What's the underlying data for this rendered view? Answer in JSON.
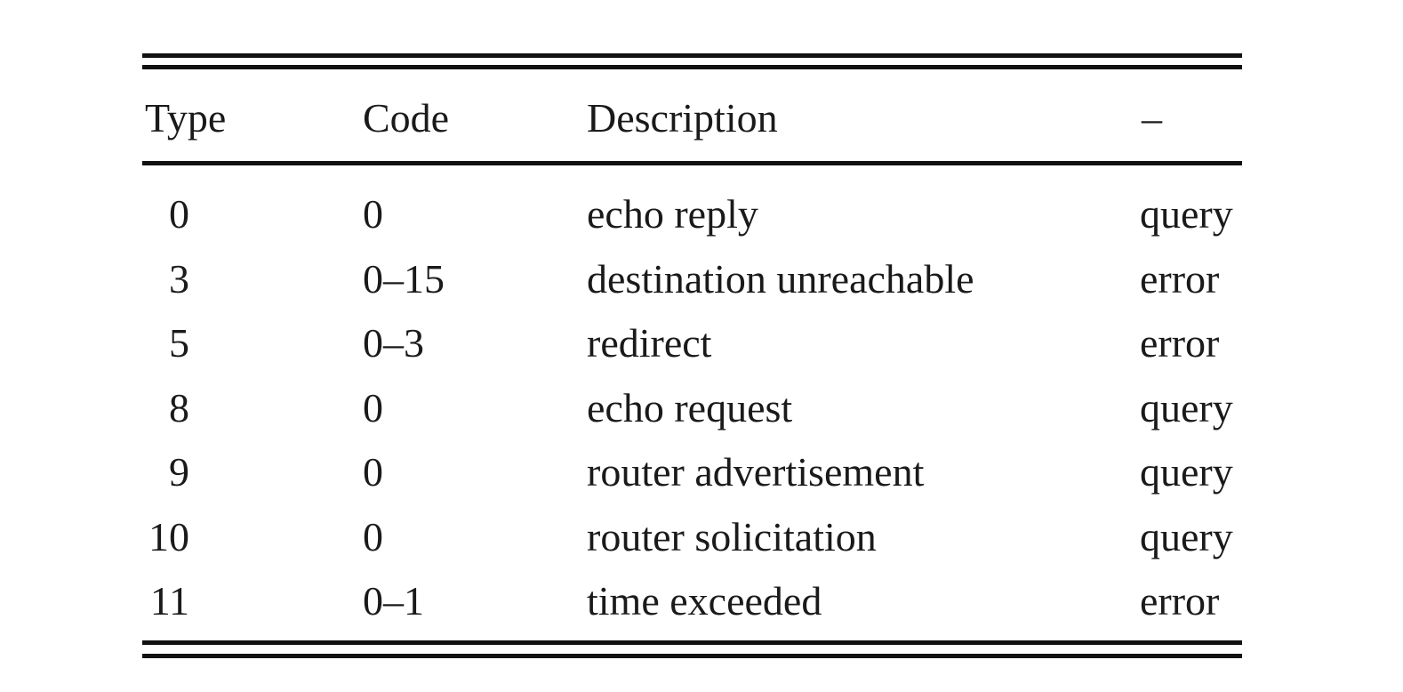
{
  "table": {
    "headers": {
      "type": "Type",
      "code": "Code",
      "description": "Description",
      "class": "–"
    },
    "rows": [
      {
        "type": "0",
        "code": "0",
        "description": "echo reply",
        "class": "query"
      },
      {
        "type": "3",
        "code": "0–15",
        "description": "destination unreachable",
        "class": "error"
      },
      {
        "type": "5",
        "code": "0–3",
        "description": "redirect",
        "class": "error"
      },
      {
        "type": "8",
        "code": "0",
        "description": "echo request",
        "class": "query"
      },
      {
        "type": "9",
        "code": "0",
        "description": "router advertisement",
        "class": "query"
      },
      {
        "type": "10",
        "code": "0",
        "description": "router solicitation",
        "class": "query"
      },
      {
        "type": "11",
        "code": "0–1",
        "description": "time exceeded",
        "class": "error"
      }
    ]
  }
}
